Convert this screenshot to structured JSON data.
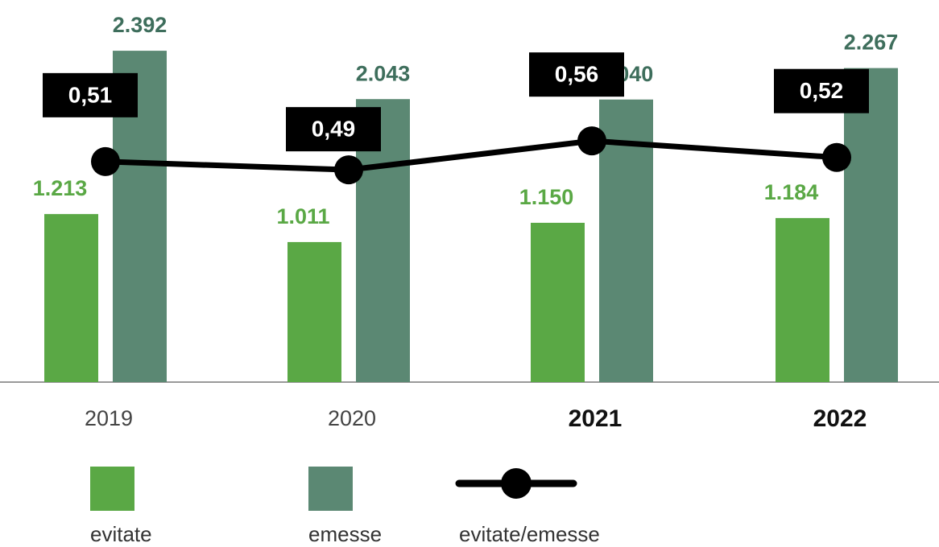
{
  "chart_data": {
    "type": "bar",
    "categories": [
      "2019",
      "2020",
      "2021",
      "2022"
    ],
    "category_bold": [
      false,
      false,
      true,
      true
    ],
    "series": [
      {
        "name": "evitate",
        "color": "#5aa845",
        "label_color": "#5aa845",
        "values": [
          1213,
          1011,
          1150,
          1184
        ],
        "value_labels": [
          "1.213",
          "1.011",
          "1.150",
          "1.184"
        ]
      },
      {
        "name": "emesse",
        "color": "#5b8873",
        "label_color": "#3e6e5c",
        "values": [
          2392,
          2043,
          2040,
          2267
        ],
        "value_labels": [
          "2.392",
          "2.043",
          "2.040",
          "2.267"
        ]
      },
      {
        "name": "evitate/emesse",
        "type": "line",
        "axis": "y2",
        "color": "#000000",
        "values": [
          0.51,
          0.49,
          0.56,
          0.52
        ],
        "value_labels": [
          "0,51",
          "0,49",
          "0,56",
          "0,52"
        ]
      }
    ]
  }
}
